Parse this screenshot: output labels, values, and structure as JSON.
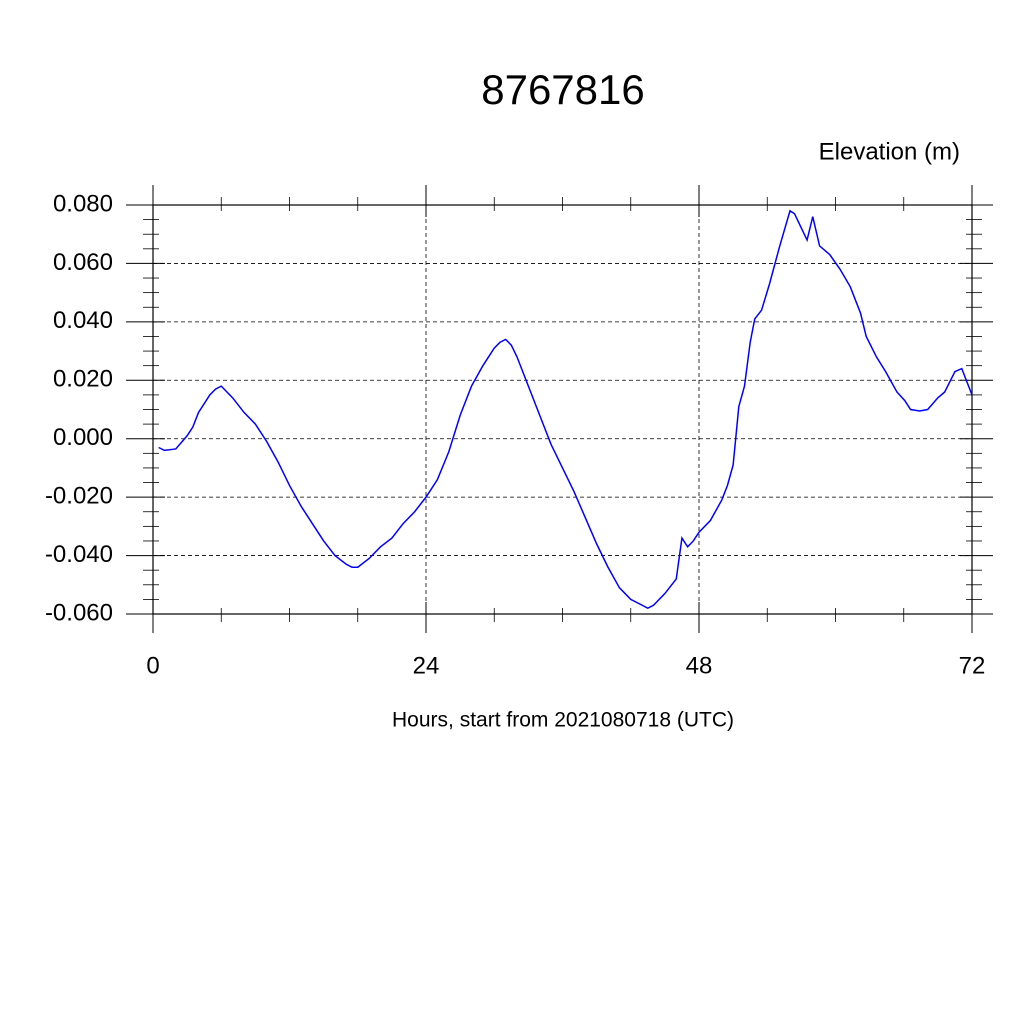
{
  "chart_data": {
    "type": "line",
    "title": "8767816",
    "ylabel": "Elevation (m)",
    "xlabel": "Hours, start from 2021080718 (UTC)",
    "xlim": [
      0,
      72
    ],
    "ylim": [
      -0.06,
      0.08
    ],
    "xticks": [
      0,
      24,
      48,
      72
    ],
    "yticks": [
      {
        "value": -0.06,
        "label": "-0.060"
      },
      {
        "value": -0.04,
        "label": "-0.040"
      },
      {
        "value": -0.02,
        "label": "-0.020"
      },
      {
        "value": 0,
        "label": "0.000"
      },
      {
        "value": 0.02,
        "label": "0.020"
      },
      {
        "value": 0.04,
        "label": "0.040"
      },
      {
        "value": 0.06,
        "label": "0.060"
      },
      {
        "value": 0.08,
        "label": "0.080"
      }
    ],
    "xminorticks": [
      6,
      12,
      18,
      30,
      36,
      42,
      54,
      60,
      66
    ],
    "yminorticks": [
      -0.055,
      -0.05,
      -0.045,
      -0.035,
      -0.03,
      -0.025,
      -0.015,
      -0.01,
      -0.005,
      0.005,
      0.01,
      0.015,
      0.025,
      0.03,
      0.035,
      0.045,
      0.05,
      0.055,
      0.065,
      0.07,
      0.075
    ],
    "grid": true,
    "series": [
      {
        "color": "#0000ff",
        "x": [
          0.5,
          1,
          2,
          3,
          3.5,
          4,
          5,
          5.5,
          6,
          6.5,
          7,
          8,
          9,
          10,
          11,
          12,
          13,
          14,
          15,
          16,
          17,
          17.5,
          18,
          19,
          20,
          21,
          22,
          23,
          24,
          25,
          26,
          27,
          28,
          29,
          30,
          30.5,
          31,
          31.5,
          32,
          33,
          34,
          35,
          36,
          37,
          38,
          39,
          40,
          41,
          42,
          43,
          43.5,
          44,
          45,
          46,
          46.5,
          47,
          47.5,
          48,
          49,
          50,
          50.5,
          51,
          51.5,
          52,
          52.5,
          52.9,
          53.5,
          54.2,
          55.1,
          56,
          56.4,
          57.5,
          58,
          58.6,
          59.5,
          60.4,
          61.3,
          62.2,
          62.7,
          63.6,
          64.4,
          65.4,
          66.1,
          66.6,
          67.4,
          68.1,
          69,
          69.6,
          70.5,
          71.1,
          72
        ],
        "values": [
          -0.003,
          -0.004,
          -0.0035,
          0.001,
          0.004,
          0.009,
          0.015,
          0.017,
          0.018,
          0.016,
          0.014,
          0.009,
          0.005,
          -0.001,
          -0.008,
          -0.016,
          -0.023,
          -0.029,
          -0.035,
          -0.04,
          -0.043,
          -0.044,
          -0.044,
          -0.041,
          -0.037,
          -0.034,
          -0.029,
          -0.025,
          -0.02,
          -0.014,
          -0.0045,
          0.008,
          0.018,
          0.025,
          0.031,
          0.033,
          0.034,
          0.032,
          0.028,
          0.018,
          0.008,
          -0.002,
          -0.01,
          -0.018,
          -0.027,
          -0.036,
          -0.044,
          -0.051,
          -0.055,
          -0.057,
          -0.058,
          -0.057,
          -0.053,
          -0.048,
          -0.034,
          -0.037,
          -0.035,
          -0.032,
          -0.028,
          -0.021,
          -0.016,
          -0.009,
          0.011,
          0.018,
          0.033,
          0.041,
          0.044,
          0.053,
          0.066,
          0.078,
          0.077,
          0.068,
          0.076,
          0.066,
          0.063,
          0.058,
          0.052,
          0.043,
          0.035,
          0.028,
          0.023,
          0.016,
          0.013,
          0.01,
          0.0095,
          0.01,
          0.014,
          0.016,
          0.023,
          0.024,
          0.015
        ]
      }
    ]
  }
}
